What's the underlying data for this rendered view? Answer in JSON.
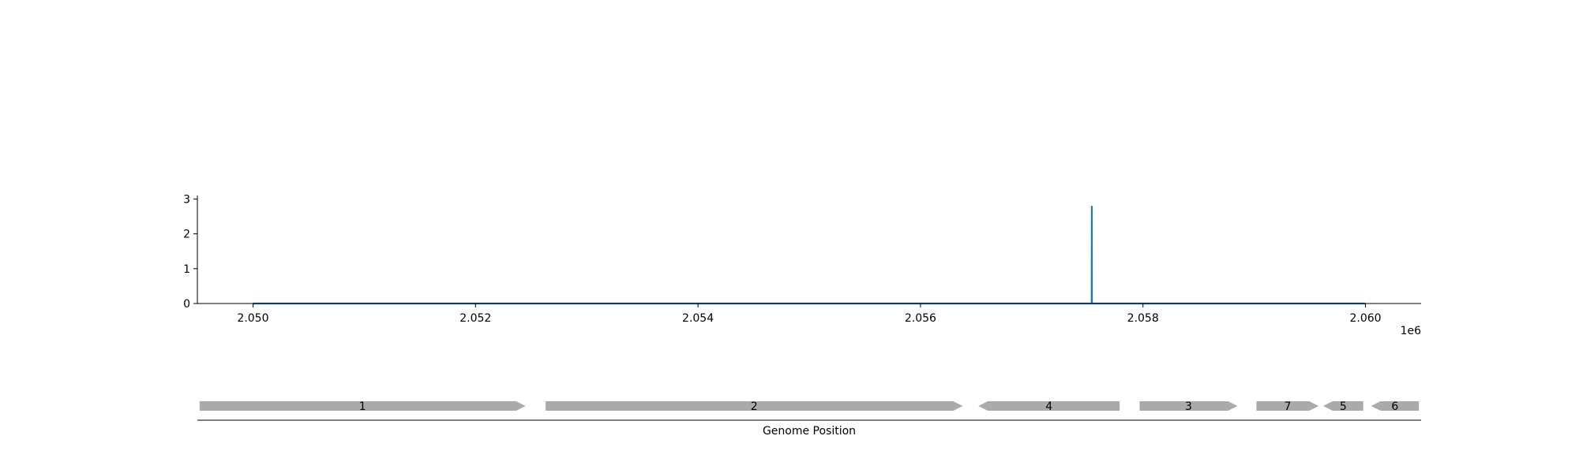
{
  "chart_data": [
    {
      "type": "line",
      "title": "",
      "xlabel": "",
      "ylabel": "",
      "x_offset_label": "1e6",
      "xlim": [
        2049500,
        2060500
      ],
      "ylim": [
        0,
        3.1
      ],
      "x_ticks": [
        2050000,
        2052000,
        2054000,
        2056000,
        2058000,
        2060000
      ],
      "x_tick_labels": [
        "2.050",
        "2.052",
        "2.054",
        "2.056",
        "2.058",
        "2.060"
      ],
      "y_ticks": [
        0,
        1,
        2,
        3
      ],
      "y_tick_labels": [
        "0",
        "1",
        "2",
        "3"
      ],
      "grid": false,
      "series": [
        {
          "color": "#1f77b4",
          "x": [
            2050000,
            2057539,
            2057540,
            2057541,
            2060000
          ],
          "y": [
            0,
            0,
            2.8,
            0,
            0
          ]
        }
      ]
    },
    {
      "type": "gene-track",
      "xlabel": "Genome Position",
      "xlim": [
        2049500,
        2060500
      ],
      "color": "#aaaaaa",
      "genes": [
        {
          "label": "1",
          "start": 2049520,
          "end": 2052450,
          "strand": "+"
        },
        {
          "label": "2",
          "start": 2052630,
          "end": 2056380,
          "strand": "+"
        },
        {
          "label": "4",
          "start": 2056520,
          "end": 2057790,
          "strand": "-"
        },
        {
          "label": "3",
          "start": 2057970,
          "end": 2058850,
          "strand": "+"
        },
        {
          "label": "7",
          "start": 2059020,
          "end": 2059580,
          "strand": "+"
        },
        {
          "label": "5",
          "start": 2059620,
          "end": 2059980,
          "strand": "-"
        },
        {
          "label": "6",
          "start": 2060050,
          "end": 2060480,
          "strand": "-"
        }
      ]
    }
  ]
}
